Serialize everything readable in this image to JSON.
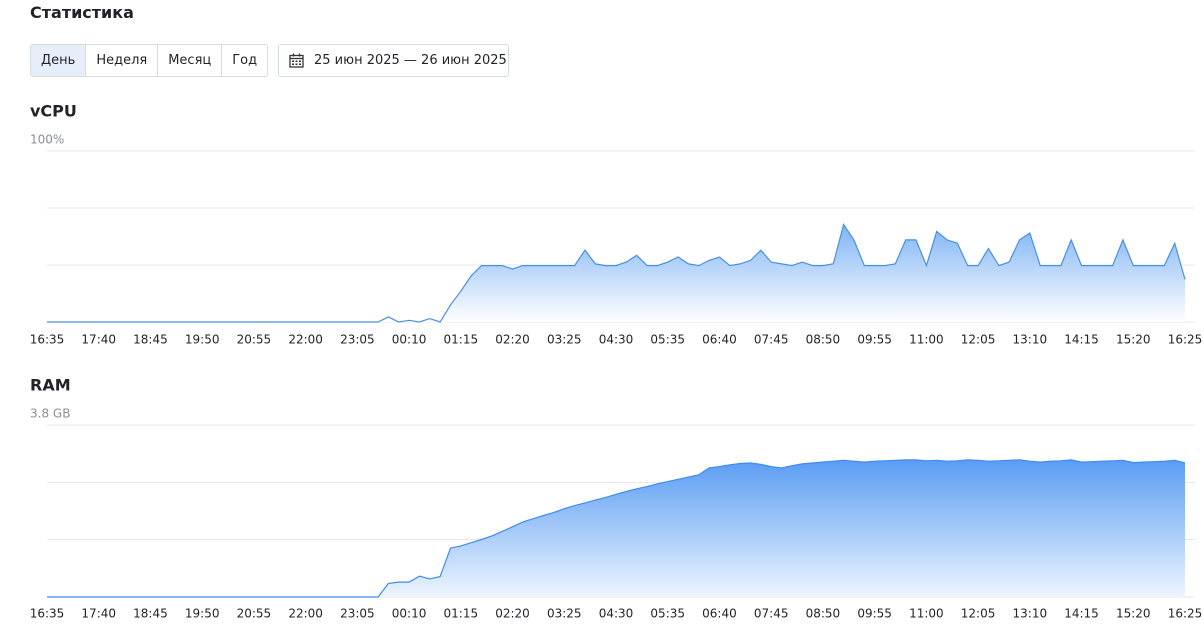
{
  "header": {
    "title": "Статистика",
    "tabs": [
      "День",
      "Неделя",
      "Месяц",
      "Год"
    ],
    "selected_tab": 0,
    "date_range": "25 июн 2025 — 26 июн 2025"
  },
  "chart_data": [
    {
      "type": "area",
      "title": "vCPU",
      "color": "#4a90e2",
      "ylim": [
        0,
        100
      ],
      "yticks": [
        {
          "value": 100,
          "label": "100%"
        }
      ],
      "grid_lines": [
        0,
        33.3,
        66.7,
        100
      ],
      "xticks": [
        "16:35",
        "17:40",
        "18:45",
        "19:50",
        "20:55",
        "22:00",
        "23:05",
        "00:10",
        "01:15",
        "02:20",
        "03:25",
        "04:30",
        "05:35",
        "06:40",
        "07:45",
        "08:50",
        "09:55",
        "11:00",
        "12:05",
        "13:10",
        "14:15",
        "15:20",
        "16:25"
      ],
      "x": [
        "16:35",
        "16:48",
        "17:01",
        "17:14",
        "17:27",
        "17:40",
        "17:53",
        "18:06",
        "18:19",
        "18:32",
        "18:45",
        "18:58",
        "19:11",
        "19:24",
        "19:37",
        "19:50",
        "20:03",
        "20:16",
        "20:29",
        "20:42",
        "20:55",
        "21:08",
        "21:21",
        "21:34",
        "21:47",
        "22:00",
        "22:13",
        "22:26",
        "22:39",
        "22:52",
        "23:05",
        "23:18",
        "23:31",
        "23:44",
        "23:57",
        "00:10",
        "00:23",
        "00:36",
        "00:49",
        "01:02",
        "01:15",
        "01:28",
        "01:41",
        "01:54",
        "02:07",
        "02:20",
        "02:33",
        "02:46",
        "02:59",
        "03:12",
        "03:25",
        "03:38",
        "03:51",
        "04:04",
        "04:17",
        "04:30",
        "04:43",
        "04:56",
        "05:09",
        "05:22",
        "05:35",
        "05:48",
        "06:01",
        "06:14",
        "06:27",
        "06:40",
        "06:53",
        "07:06",
        "07:19",
        "07:32",
        "07:45",
        "07:58",
        "08:11",
        "08:24",
        "08:37",
        "08:50",
        "09:03",
        "09:16",
        "09:29",
        "09:42",
        "09:55",
        "10:08",
        "10:21",
        "10:34",
        "10:47",
        "11:00",
        "11:13",
        "11:26",
        "11:39",
        "11:52",
        "12:05",
        "12:18",
        "12:31",
        "12:44",
        "12:57",
        "13:10",
        "13:23",
        "13:36",
        "13:49",
        "14:02",
        "14:15",
        "14:28",
        "14:41",
        "14:54",
        "15:07",
        "15:20",
        "15:33",
        "15:46",
        "15:59",
        "16:12",
        "16:25"
      ],
      "values": [
        0,
        0,
        0,
        0,
        0,
        0,
        0,
        0,
        0,
        0,
        0,
        0,
        0,
        0,
        0,
        0,
        0,
        0,
        0,
        0,
        0,
        0,
        0,
        0,
        0,
        0,
        0,
        0,
        0,
        0,
        0,
        0,
        0,
        3,
        0,
        1,
        0,
        2,
        0,
        10,
        18,
        27,
        33,
        33,
        33,
        31,
        33,
        33,
        33,
        33,
        33,
        33,
        42,
        34,
        33,
        33,
        35,
        39,
        33,
        33,
        35,
        38,
        34,
        33,
        36,
        38,
        33,
        34,
        36,
        42,
        35,
        34,
        33,
        35,
        33,
        33,
        34,
        57,
        48,
        33,
        33,
        33,
        34,
        48,
        48,
        33,
        53,
        48,
        46,
        33,
        33,
        43,
        33,
        35,
        48,
        52,
        33,
        33,
        33,
        48,
        33,
        33,
        33,
        33,
        48,
        33,
        33,
        33,
        33,
        46,
        25
      ]
    },
    {
      "type": "area",
      "title": "RAM",
      "color": "#3d8cf0",
      "ylim": [
        0,
        3.8
      ],
      "yticks": [
        {
          "value": 3.8,
          "label": "3.8 GB"
        }
      ],
      "grid_lines": [
        0,
        1.27,
        2.53,
        3.8
      ],
      "xticks": [
        "16:35",
        "17:40",
        "18:45",
        "19:50",
        "20:55",
        "22:00",
        "23:05",
        "00:10",
        "01:15",
        "02:20",
        "03:25",
        "04:30",
        "05:35",
        "06:40",
        "07:45",
        "08:50",
        "09:55",
        "11:00",
        "12:05",
        "13:10",
        "14:15",
        "15:20",
        "16:25"
      ],
      "x": [
        "16:35",
        "16:48",
        "17:01",
        "17:14",
        "17:27",
        "17:40",
        "17:53",
        "18:06",
        "18:19",
        "18:32",
        "18:45",
        "18:58",
        "19:11",
        "19:24",
        "19:37",
        "19:50",
        "20:03",
        "20:16",
        "20:29",
        "20:42",
        "20:55",
        "21:08",
        "21:21",
        "21:34",
        "21:47",
        "22:00",
        "22:13",
        "22:26",
        "22:39",
        "22:52",
        "23:05",
        "23:18",
        "23:31",
        "23:44",
        "23:57",
        "00:10",
        "00:23",
        "00:36",
        "00:49",
        "01:02",
        "01:15",
        "01:28",
        "01:41",
        "01:54",
        "02:07",
        "02:20",
        "02:33",
        "02:46",
        "02:59",
        "03:12",
        "03:25",
        "03:38",
        "03:51",
        "04:04",
        "04:17",
        "04:30",
        "04:43",
        "04:56",
        "05:09",
        "05:22",
        "05:35",
        "05:48",
        "06:01",
        "06:14",
        "06:27",
        "06:40",
        "06:53",
        "07:06",
        "07:19",
        "07:32",
        "07:45",
        "07:58",
        "08:11",
        "08:24",
        "08:37",
        "08:50",
        "09:03",
        "09:16",
        "09:29",
        "09:42",
        "09:55",
        "10:08",
        "10:21",
        "10:34",
        "10:47",
        "11:00",
        "11:13",
        "11:26",
        "11:39",
        "11:52",
        "12:05",
        "12:18",
        "12:31",
        "12:44",
        "12:57",
        "13:10",
        "13:23",
        "13:36",
        "13:49",
        "14:02",
        "14:15",
        "14:28",
        "14:41",
        "14:54",
        "15:07",
        "15:20",
        "15:33",
        "15:46",
        "15:59",
        "16:12",
        "16:25"
      ],
      "values": [
        0,
        0,
        0,
        0,
        0,
        0,
        0,
        0,
        0,
        0,
        0,
        0,
        0,
        0,
        0,
        0,
        0,
        0,
        0,
        0,
        0,
        0,
        0,
        0,
        0,
        0,
        0,
        0,
        0,
        0,
        0,
        0,
        0,
        0.3,
        0.33,
        0.33,
        0.46,
        0.4,
        0.45,
        1.08,
        1.13,
        1.2,
        1.27,
        1.35,
        1.45,
        1.55,
        1.66,
        1.73,
        1.8,
        1.87,
        1.95,
        2.02,
        2.08,
        2.14,
        2.2,
        2.27,
        2.33,
        2.39,
        2.44,
        2.5,
        2.55,
        2.6,
        2.65,
        2.7,
        2.85,
        2.88,
        2.92,
        2.95,
        2.96,
        2.93,
        2.88,
        2.85,
        2.9,
        2.94,
        2.96,
        2.98,
        3.0,
        3.02,
        3.0,
        2.98,
        3.0,
        3.01,
        3.02,
        3.03,
        3.03,
        3.01,
        3.02,
        3.0,
        3.01,
        3.03,
        3.02,
        3.0,
        3.01,
        3.02,
        3.03,
        3.0,
        2.98,
        3.0,
        3.01,
        3.03,
        2.98,
        2.99,
        3.0,
        3.01,
        3.02,
        2.97,
        2.98,
        2.99,
        3.0,
        3.02,
        2.96
      ]
    }
  ]
}
